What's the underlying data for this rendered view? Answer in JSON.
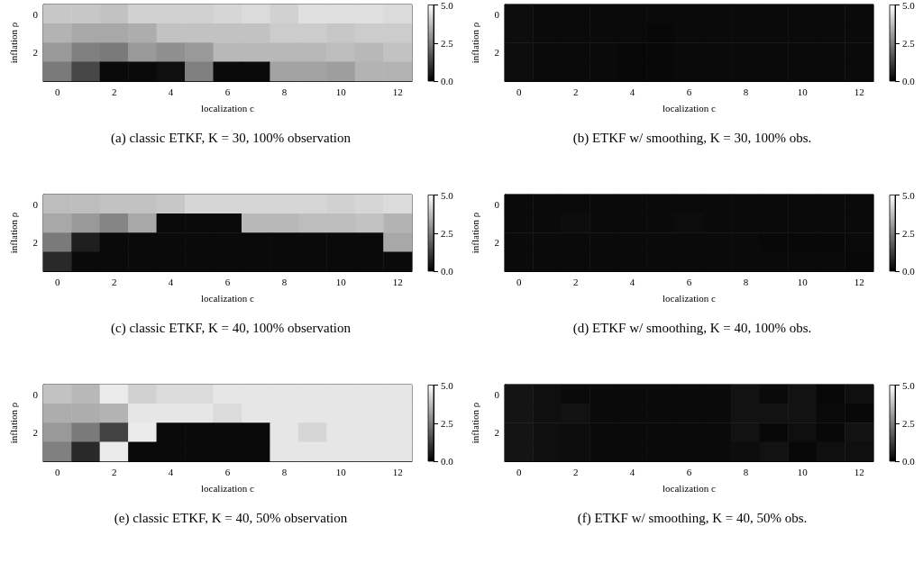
{
  "chart_data": [
    {
      "type": "heatmap",
      "title": "(a) classic ETKF, K = 30, 100% observation",
      "xlabel": "localization c",
      "ylabel": "inflation ρ",
      "categories": [
        "0",
        null,
        "2",
        null,
        "4",
        null,
        "6",
        null,
        "8",
        null,
        "10",
        null,
        "12"
      ],
      "y_categories": [
        "0",
        null,
        "2",
        null
      ],
      "cells": [
        [
          3.9,
          3.9,
          3.8,
          4.1,
          4.1,
          4.1,
          4.2,
          4.3,
          4.1,
          4.4,
          4.4,
          4.4,
          4.3
        ],
        [
          3.5,
          3.3,
          3.3,
          3.4,
          3.8,
          3.8,
          3.8,
          3.8,
          4.0,
          4.0,
          3.9,
          4.0,
          4.0
        ],
        [
          3.0,
          2.5,
          2.4,
          3.0,
          2.8,
          3.0,
          3.6,
          3.6,
          3.6,
          3.6,
          3.7,
          3.6,
          3.8
        ],
        [
          2.4,
          1.4,
          0.2,
          0.2,
          0.3,
          2.5,
          0.2,
          0.2,
          3.2,
          3.2,
          3.1,
          3.5,
          3.5
        ]
      ],
      "clim": [
        0,
        5
      ],
      "cticks": [
        {
          "value": 0,
          "label": "0.0"
        },
        {
          "value": 2.5,
          "label": "2.5"
        },
        {
          "value": 5,
          "label": "5.0"
        }
      ]
    },
    {
      "type": "heatmap",
      "title": "(b) ETKF w/ smoothing, K = 30, 100% obs.",
      "xlabel": "localization c",
      "ylabel": "inflation ρ",
      "categories": [
        "0",
        null,
        "2",
        null,
        "4",
        null,
        "6",
        null,
        "8",
        null,
        "10",
        null,
        "12"
      ],
      "y_categories": [
        "0",
        null,
        "2",
        null
      ],
      "cells": [
        [
          0.25,
          0.2,
          0.2,
          0.2,
          0.2,
          0.2,
          0.2,
          0.2,
          0.2,
          0.2,
          0.2,
          0.2,
          0.2
        ],
        [
          0.25,
          0.2,
          0.2,
          0.2,
          0.2,
          0.15,
          0.2,
          0.2,
          0.2,
          0.2,
          0.2,
          0.2,
          0.2
        ],
        [
          0.25,
          0.2,
          0.2,
          0.2,
          0.15,
          0.15,
          0.2,
          0.2,
          0.2,
          0.2,
          0.2,
          0.2,
          0.2
        ],
        [
          0.25,
          0.2,
          0.2,
          0.2,
          0.15,
          0.15,
          0.2,
          0.2,
          0.2,
          0.2,
          0.2,
          0.2,
          0.2
        ]
      ],
      "clim": [
        0,
        5
      ],
      "cticks": [
        {
          "value": 0,
          "label": "0.0"
        },
        {
          "value": 2.5,
          "label": "2.5"
        },
        {
          "value": 5,
          "label": "5.0"
        }
      ]
    },
    {
      "type": "heatmap",
      "title": "(c) classic ETKF, K = 40, 100% observation",
      "xlabel": "localization c",
      "ylabel": "inflation ρ",
      "categories": [
        "0",
        null,
        "2",
        null,
        "4",
        null,
        "6",
        null,
        "8",
        null,
        "10",
        null,
        "12"
      ],
      "y_categories": [
        "0",
        null,
        "2",
        null
      ],
      "cells": [
        [
          3.7,
          3.7,
          3.8,
          3.8,
          3.9,
          4.2,
          4.2,
          4.2,
          4.2,
          4.2,
          4.1,
          4.2,
          4.3
        ],
        [
          3.3,
          3.0,
          2.6,
          3.3,
          0.2,
          0.2,
          0.2,
          3.6,
          3.6,
          3.7,
          3.7,
          3.8,
          3.5
        ],
        [
          2.4,
          0.6,
          0.2,
          0.2,
          0.2,
          0.2,
          0.2,
          0.2,
          0.2,
          0.2,
          0.2,
          0.2,
          3.3
        ],
        [
          0.8,
          0.2,
          0.2,
          0.2,
          0.2,
          0.2,
          0.2,
          0.2,
          0.2,
          0.2,
          0.2,
          0.2,
          0.2
        ]
      ],
      "clim": [
        0,
        5
      ],
      "cticks": [
        {
          "value": 0,
          "label": "0.0"
        },
        {
          "value": 2.5,
          "label": "2.5"
        },
        {
          "value": 5,
          "label": "5.0"
        }
      ]
    },
    {
      "type": "heatmap",
      "title": "(d) ETKF w/ smoothing, K = 40, 100% obs.",
      "xlabel": "localization c",
      "ylabel": "inflation ρ",
      "categories": [
        "0",
        null,
        "2",
        null,
        "4",
        null,
        "6",
        null,
        "8",
        null,
        "10",
        null,
        "12"
      ],
      "y_categories": [
        "0",
        null,
        "2",
        null
      ],
      "cells": [
        [
          0.2,
          0.2,
          0.2,
          0.2,
          0.2,
          0.2,
          0.2,
          0.2,
          0.2,
          0.2,
          0.2,
          0.2,
          0.2
        ],
        [
          0.2,
          0.2,
          0.25,
          0.2,
          0.2,
          0.2,
          0.25,
          0.2,
          0.2,
          0.2,
          0.2,
          0.2,
          0.2
        ],
        [
          0.2,
          0.2,
          0.2,
          0.2,
          0.2,
          0.2,
          0.2,
          0.2,
          0.2,
          0.15,
          0.15,
          0.15,
          0.2
        ],
        [
          0.2,
          0.2,
          0.2,
          0.2,
          0.2,
          0.2,
          0.2,
          0.2,
          0.2,
          0.2,
          0.2,
          0.2,
          0.15
        ]
      ],
      "clim": [
        0,
        5
      ],
      "cticks": [
        {
          "value": 0,
          "label": "0.0"
        },
        {
          "value": 2.5,
          "label": "2.5"
        },
        {
          "value": 5,
          "label": "5.0"
        }
      ]
    },
    {
      "type": "heatmap",
      "title": "(e) classic ETKF, K = 40, 50% observation",
      "xlabel": "localization c",
      "ylabel": "inflation ρ",
      "categories": [
        "0",
        null,
        "2",
        null,
        "4",
        null,
        "6",
        null,
        "8",
        null,
        "10",
        null,
        "12"
      ],
      "y_categories": [
        "0",
        null,
        "2",
        null
      ],
      "cells": [
        [
          3.8,
          3.6,
          4.6,
          4.1,
          4.3,
          4.3,
          4.5,
          4.5,
          4.5,
          4.5,
          4.5,
          4.5,
          4.5
        ],
        [
          3.4,
          3.4,
          3.5,
          4.5,
          4.5,
          4.5,
          4.3,
          4.5,
          4.5,
          4.5,
          4.5,
          4.5,
          4.5
        ],
        [
          3.0,
          2.4,
          1.3,
          4.6,
          0.2,
          0.2,
          0.2,
          0.2,
          4.5,
          4.2,
          4.5,
          4.5,
          4.5
        ],
        [
          2.5,
          0.8,
          4.6,
          0.2,
          0.2,
          0.2,
          0.2,
          0.2,
          4.5,
          4.5,
          4.5,
          4.5,
          4.5
        ]
      ],
      "clim": [
        0,
        5
      ],
      "cticks": [
        {
          "value": 0,
          "label": "0.0"
        },
        {
          "value": 2.5,
          "label": "2.5"
        },
        {
          "value": 5,
          "label": "5.0"
        }
      ]
    },
    {
      "type": "heatmap",
      "title": "(f) ETKF w/ smoothing, K = 40, 50% obs.",
      "xlabel": "localization c",
      "ylabel": "inflation ρ",
      "categories": [
        "0",
        null,
        "2",
        null,
        "4",
        null,
        "6",
        null,
        "8",
        null,
        "10",
        null,
        "12"
      ],
      "y_categories": [
        "0",
        null,
        "2",
        null
      ],
      "cells": [
        [
          0.4,
          0.3,
          0.2,
          0.2,
          0.2,
          0.2,
          0.2,
          0.2,
          0.35,
          0.2,
          0.35,
          0.15,
          0.3
        ],
        [
          0.4,
          0.3,
          0.35,
          0.2,
          0.2,
          0.2,
          0.2,
          0.2,
          0.35,
          0.35,
          0.35,
          0.2,
          0.15
        ],
        [
          0.4,
          0.3,
          0.25,
          0.2,
          0.2,
          0.2,
          0.2,
          0.2,
          0.35,
          0.15,
          0.3,
          0.15,
          0.35
        ],
        [
          0.4,
          0.3,
          0.25,
          0.2,
          0.2,
          0.2,
          0.2,
          0.2,
          0.25,
          0.35,
          0.15,
          0.3,
          0.3
        ]
      ],
      "clim": [
        0,
        5
      ],
      "cticks": [
        {
          "value": 0,
          "label": "0.0"
        },
        {
          "value": 2.5,
          "label": "2.5"
        },
        {
          "value": 5,
          "label": "5.0"
        }
      ]
    }
  ]
}
